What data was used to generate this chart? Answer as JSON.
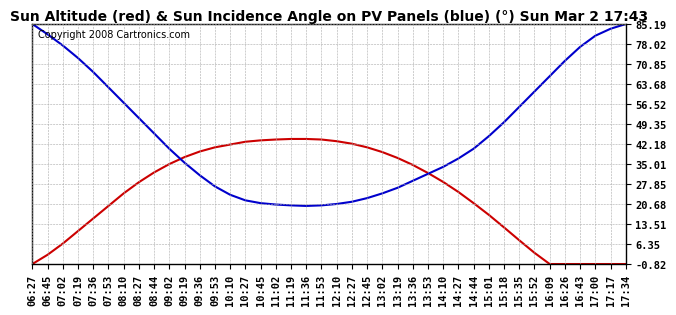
{
  "title": "Sun Altitude (red) & Sun Incidence Angle on PV Panels (blue) (°) Sun Mar 2 17:43",
  "copyright": "Copyright 2008 Cartronics.com",
  "yticks": [
    85.19,
    78.02,
    70.85,
    63.68,
    56.52,
    49.35,
    42.18,
    35.01,
    27.85,
    20.68,
    13.51,
    6.35,
    -0.82
  ],
  "ylim": [
    -0.82,
    85.19
  ],
  "xtick_labels": [
    "06:27",
    "06:45",
    "07:02",
    "07:19",
    "07:36",
    "07:53",
    "08:10",
    "08:27",
    "08:44",
    "09:02",
    "09:19",
    "09:36",
    "09:53",
    "10:10",
    "10:27",
    "10:45",
    "11:02",
    "11:19",
    "11:36",
    "11:53",
    "12:10",
    "12:27",
    "12:45",
    "13:02",
    "13:19",
    "13:36",
    "13:53",
    "14:10",
    "14:27",
    "14:44",
    "15:01",
    "15:18",
    "15:35",
    "15:52",
    "16:09",
    "16:26",
    "16:43",
    "17:00",
    "17:17",
    "17:34"
  ],
  "red_y": [
    -0.82,
    2.5,
    6.5,
    11.0,
    15.5,
    20.0,
    24.5,
    28.5,
    32.0,
    35.0,
    37.5,
    39.5,
    41.0,
    42.0,
    43.0,
    43.5,
    43.8,
    44.0,
    44.0,
    43.8,
    43.2,
    42.3,
    41.0,
    39.3,
    37.2,
    34.7,
    31.8,
    28.6,
    25.0,
    21.0,
    16.8,
    12.3,
    7.7,
    3.2,
    -0.82,
    -0.82,
    -0.82,
    -0.82,
    -0.82,
    -0.82
  ],
  "blue_y": [
    85.19,
    81.5,
    77.5,
    73.0,
    68.0,
    62.5,
    57.0,
    51.5,
    46.0,
    40.5,
    35.5,
    31.0,
    27.0,
    24.0,
    22.0,
    21.0,
    20.5,
    20.2,
    20.0,
    20.2,
    20.7,
    21.5,
    22.8,
    24.5,
    26.5,
    29.0,
    31.5,
    34.0,
    37.0,
    40.5,
    45.0,
    50.0,
    55.5,
    61.0,
    66.5,
    72.0,
    77.0,
    81.0,
    83.5,
    85.19
  ],
  "red_color": "#cc0000",
  "blue_color": "#0000cc",
  "background_color": "#ffffff",
  "grid_color": "#aaaaaa",
  "title_fontsize": 10,
  "copyright_fontsize": 7,
  "tick_fontsize": 7.5
}
